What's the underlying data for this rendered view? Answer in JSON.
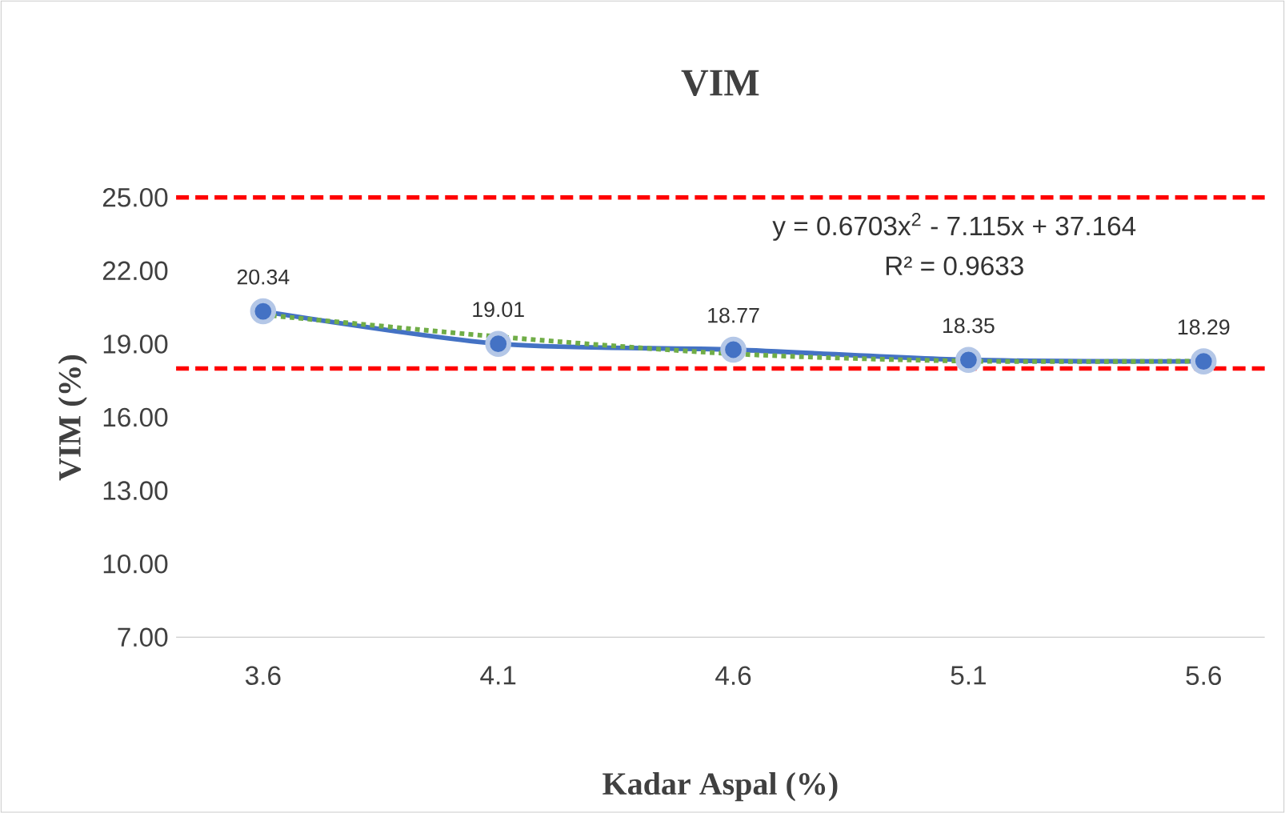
{
  "chart_data": {
    "type": "line",
    "title": "VIM",
    "xlabel": "Kadar Aspal (%)",
    "ylabel": "VIM (%)",
    "categories": [
      "3.6",
      "4.1",
      "4.6",
      "5.1",
      "5.6"
    ],
    "series": [
      {
        "color": "#4472c4",
        "marker": "circle",
        "values": [
          20.34,
          19.01,
          18.77,
          18.35,
          18.29
        ],
        "value_labels": [
          "20.34",
          "19.01",
          "18.77",
          "18.35",
          "18.29"
        ]
      },
      {
        "color": "#70ad47",
        "marker": "none",
        "line_style": "dotted",
        "values": [
          20.2,
          19.3,
          18.6,
          18.3,
          18.3
        ]
      }
    ],
    "ylim": [
      7,
      25
    ],
    "yticks": [
      {
        "value": 7,
        "label": "7.00"
      },
      {
        "value": 10,
        "label": "10.00"
      },
      {
        "value": 13,
        "label": "13.00"
      },
      {
        "value": 16,
        "label": "16.00"
      },
      {
        "value": 19,
        "label": "19.00"
      },
      {
        "value": 22,
        "label": "22.00"
      },
      {
        "value": 25,
        "label": "25.00"
      }
    ],
    "ref_lines": [
      {
        "axis": "y",
        "value": 25,
        "color": "#ff0000",
        "line_style": "dashed"
      },
      {
        "axis": "y",
        "value": 18,
        "color": "#ff0000",
        "line_style": "dashed"
      }
    ],
    "annotations": [
      "y = 0.6703x$^{2}$ - 7.115x + 37.164",
      "R² = 0.9633"
    ],
    "grid": false
  }
}
